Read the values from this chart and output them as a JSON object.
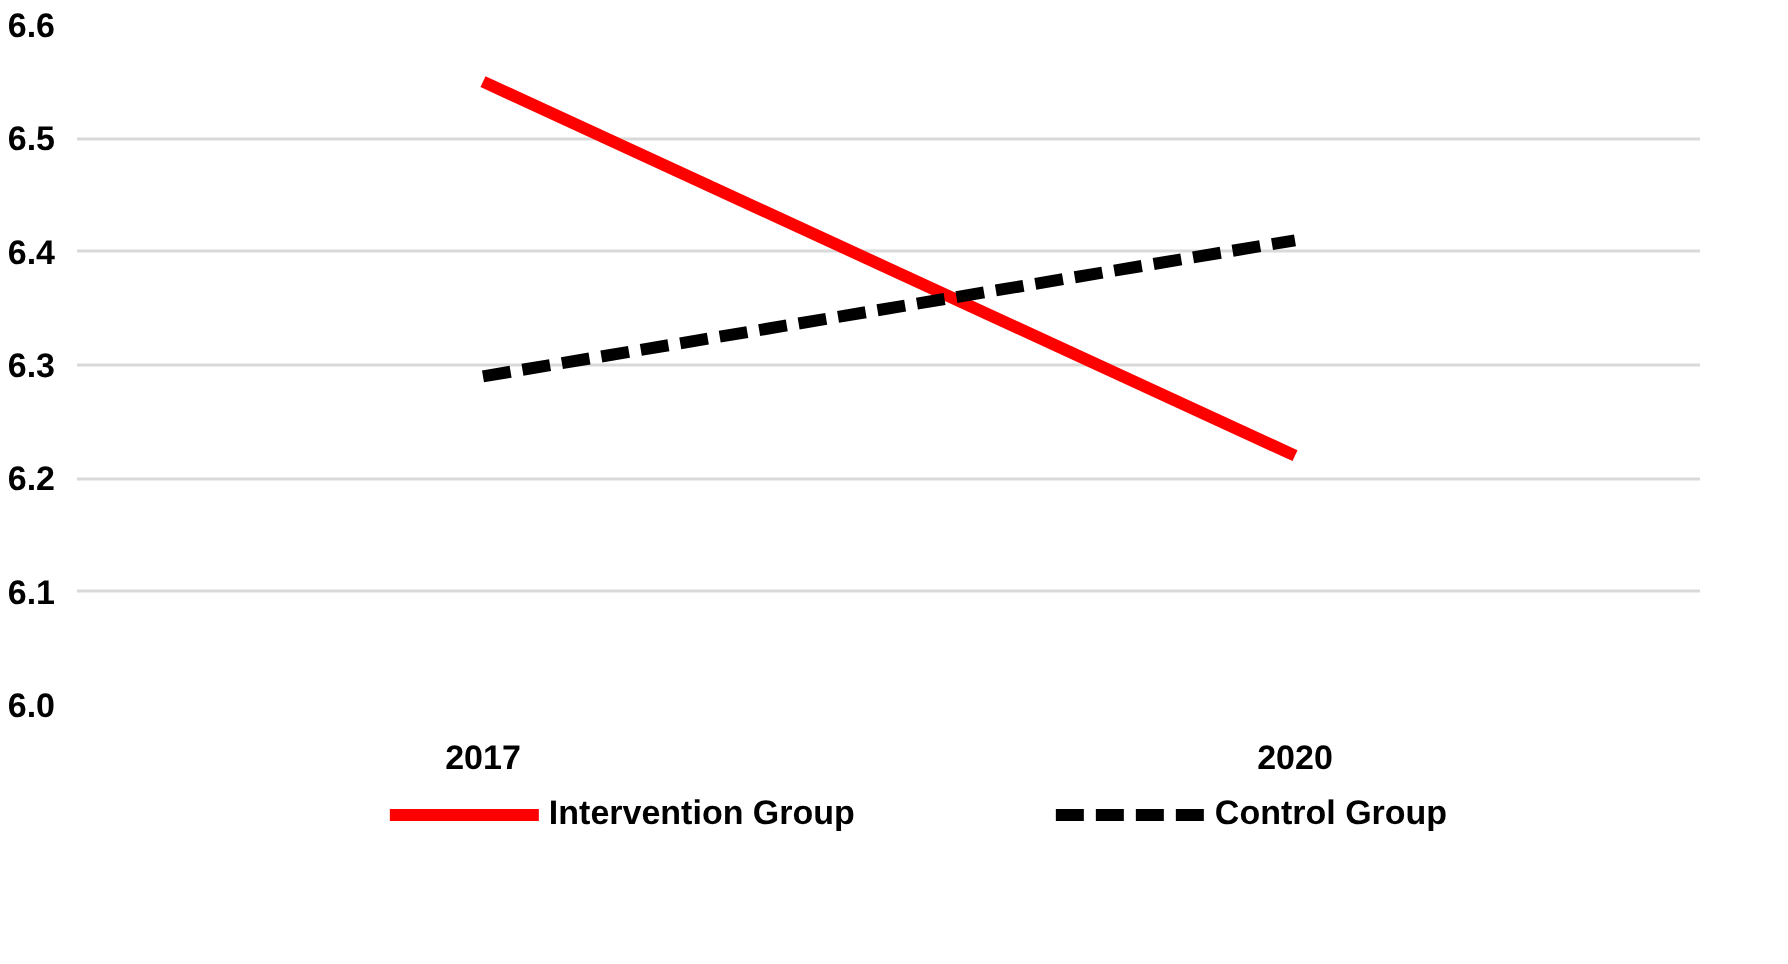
{
  "chart_data": {
    "type": "line",
    "categories": [
      "2017",
      "2020"
    ],
    "series": [
      {
        "name": "Intervention Group",
        "color": "#ff0000",
        "values": [
          6.55,
          6.22
        ],
        "line_style": "solid"
      },
      {
        "name": "Control Group",
        "color": "#000000",
        "values": [
          6.29,
          6.41
        ],
        "line_style": "dashed"
      }
    ],
    "ylim": [
      6.0,
      6.6
    ],
    "yticks": [
      {
        "value": 6.0,
        "label": "6.0"
      },
      {
        "value": 6.1,
        "label": "6.1"
      },
      {
        "value": 6.2,
        "label": "6.2"
      },
      {
        "value": 6.3,
        "label": "6.3"
      },
      {
        "value": 6.4,
        "label": "6.4"
      },
      {
        "value": 6.5,
        "label": "6.5"
      },
      {
        "value": 6.6,
        "label": "6.6"
      }
    ],
    "grid": "y",
    "legend": "bottom",
    "marker": "none"
  }
}
